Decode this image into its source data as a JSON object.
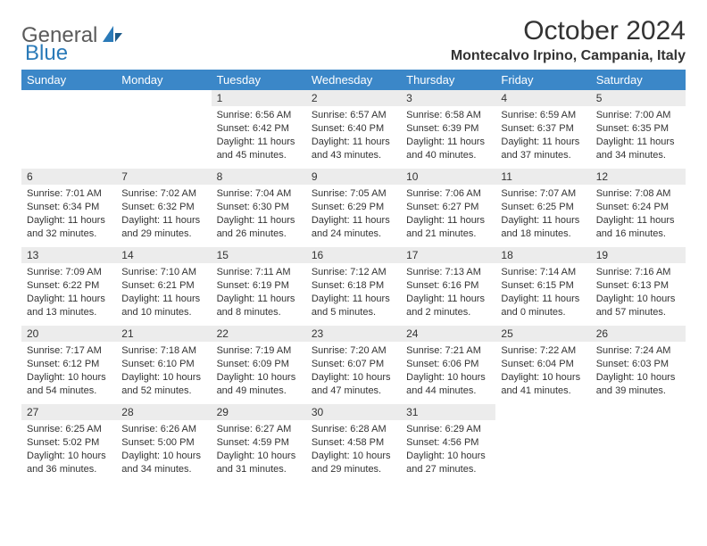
{
  "logo": {
    "text1": "General",
    "text2": "Blue"
  },
  "title": "October 2024",
  "location": "Montecalvo Irpino, Campania, Italy",
  "colors": {
    "header_bg": "#3b87c8",
    "header_text": "#ffffff",
    "daynum_bg": "#ececec",
    "border": "#7a7a7a",
    "text": "#333333",
    "logo_gray": "#5a5a5a",
    "logo_blue": "#2a7ab8"
  },
  "weekdays": [
    "Sunday",
    "Monday",
    "Tuesday",
    "Wednesday",
    "Thursday",
    "Friday",
    "Saturday"
  ],
  "weeks": [
    [
      null,
      null,
      {
        "n": "1",
        "sr": "6:56 AM",
        "ss": "6:42 PM",
        "dl": "11 hours and 45 minutes."
      },
      {
        "n": "2",
        "sr": "6:57 AM",
        "ss": "6:40 PM",
        "dl": "11 hours and 43 minutes."
      },
      {
        "n": "3",
        "sr": "6:58 AM",
        "ss": "6:39 PM",
        "dl": "11 hours and 40 minutes."
      },
      {
        "n": "4",
        "sr": "6:59 AM",
        "ss": "6:37 PM",
        "dl": "11 hours and 37 minutes."
      },
      {
        "n": "5",
        "sr": "7:00 AM",
        "ss": "6:35 PM",
        "dl": "11 hours and 34 minutes."
      }
    ],
    [
      {
        "n": "6",
        "sr": "7:01 AM",
        "ss": "6:34 PM",
        "dl": "11 hours and 32 minutes."
      },
      {
        "n": "7",
        "sr": "7:02 AM",
        "ss": "6:32 PM",
        "dl": "11 hours and 29 minutes."
      },
      {
        "n": "8",
        "sr": "7:04 AM",
        "ss": "6:30 PM",
        "dl": "11 hours and 26 minutes."
      },
      {
        "n": "9",
        "sr": "7:05 AM",
        "ss": "6:29 PM",
        "dl": "11 hours and 24 minutes."
      },
      {
        "n": "10",
        "sr": "7:06 AM",
        "ss": "6:27 PM",
        "dl": "11 hours and 21 minutes."
      },
      {
        "n": "11",
        "sr": "7:07 AM",
        "ss": "6:25 PM",
        "dl": "11 hours and 18 minutes."
      },
      {
        "n": "12",
        "sr": "7:08 AM",
        "ss": "6:24 PM",
        "dl": "11 hours and 16 minutes."
      }
    ],
    [
      {
        "n": "13",
        "sr": "7:09 AM",
        "ss": "6:22 PM",
        "dl": "11 hours and 13 minutes."
      },
      {
        "n": "14",
        "sr": "7:10 AM",
        "ss": "6:21 PM",
        "dl": "11 hours and 10 minutes."
      },
      {
        "n": "15",
        "sr": "7:11 AM",
        "ss": "6:19 PM",
        "dl": "11 hours and 8 minutes."
      },
      {
        "n": "16",
        "sr": "7:12 AM",
        "ss": "6:18 PM",
        "dl": "11 hours and 5 minutes."
      },
      {
        "n": "17",
        "sr": "7:13 AM",
        "ss": "6:16 PM",
        "dl": "11 hours and 2 minutes."
      },
      {
        "n": "18",
        "sr": "7:14 AM",
        "ss": "6:15 PM",
        "dl": "11 hours and 0 minutes."
      },
      {
        "n": "19",
        "sr": "7:16 AM",
        "ss": "6:13 PM",
        "dl": "10 hours and 57 minutes."
      }
    ],
    [
      {
        "n": "20",
        "sr": "7:17 AM",
        "ss": "6:12 PM",
        "dl": "10 hours and 54 minutes."
      },
      {
        "n": "21",
        "sr": "7:18 AM",
        "ss": "6:10 PM",
        "dl": "10 hours and 52 minutes."
      },
      {
        "n": "22",
        "sr": "7:19 AM",
        "ss": "6:09 PM",
        "dl": "10 hours and 49 minutes."
      },
      {
        "n": "23",
        "sr": "7:20 AM",
        "ss": "6:07 PM",
        "dl": "10 hours and 47 minutes."
      },
      {
        "n": "24",
        "sr": "7:21 AM",
        "ss": "6:06 PM",
        "dl": "10 hours and 44 minutes."
      },
      {
        "n": "25",
        "sr": "7:22 AM",
        "ss": "6:04 PM",
        "dl": "10 hours and 41 minutes."
      },
      {
        "n": "26",
        "sr": "7:24 AM",
        "ss": "6:03 PM",
        "dl": "10 hours and 39 minutes."
      }
    ],
    [
      {
        "n": "27",
        "sr": "6:25 AM",
        "ss": "5:02 PM",
        "dl": "10 hours and 36 minutes."
      },
      {
        "n": "28",
        "sr": "6:26 AM",
        "ss": "5:00 PM",
        "dl": "10 hours and 34 minutes."
      },
      {
        "n": "29",
        "sr": "6:27 AM",
        "ss": "4:59 PM",
        "dl": "10 hours and 31 minutes."
      },
      {
        "n": "30",
        "sr": "6:28 AM",
        "ss": "4:58 PM",
        "dl": "10 hours and 29 minutes."
      },
      {
        "n": "31",
        "sr": "6:29 AM",
        "ss": "4:56 PM",
        "dl": "10 hours and 27 minutes."
      },
      null,
      null
    ]
  ],
  "labels": {
    "sunrise": "Sunrise:",
    "sunset": "Sunset:",
    "daylight": "Daylight:"
  }
}
